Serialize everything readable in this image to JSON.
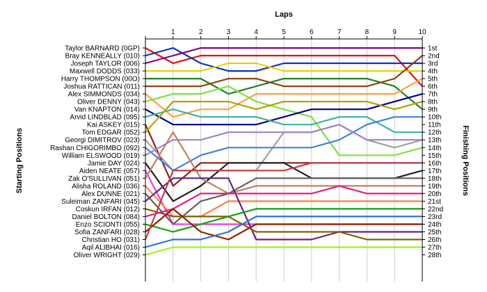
{
  "chart_data": {
    "type": "line",
    "title": "",
    "xlabel": "Laps",
    "ylabel_left": "Starting Positions",
    "ylabel_right": "Finishing Positions",
    "x": [
      0,
      1,
      2,
      3,
      4,
      5,
      6,
      7,
      8,
      9,
      10
    ],
    "x_tick_labels": [
      "",
      "1",
      "2",
      "3",
      "4",
      "5",
      "6",
      "7",
      "8",
      "9",
      "10"
    ],
    "y_range": [
      1,
      28
    ],
    "y_inverted": true,
    "grid": "vertical",
    "driver_labels": [
      "Taylor BARNARD (0GP)",
      "Bray KENNEALLY (010)",
      "Joseph TAYLOR (006)",
      "Maxwell DODDS (033)",
      "Harry THOMPSON (00O)",
      "Joshua RATTICAN (011)",
      "Alex SIMMONDS (034)",
      "Oliver DENNY (043)",
      "Van KNAPTON (014)",
      "Arvid LINDBLAD (095)",
      "Kai ASKEY (015)",
      "Tom EDGAR (052)",
      "Georgi DIMITROV (023)",
      "Rashan CHIGORIMBO (092)",
      "William ELSWOOD (019)",
      "Jamie DAY (024)",
      "Aiden NEATE (057)",
      "Zak O'SULLIVAN (051)",
      "Alisha ROLAND (036)",
      "Alex DUNNE (021)",
      "Suleiman ZANFARI (045)",
      "Coskun IRFAN (012)",
      "Daniel BOLTON (084)",
      "Enzo SCIONTI (055)",
      "Sofia ZANFARI (028)",
      "Christian HO (031)",
      "Aqil ALIBHAI (016)",
      "Oliver WRIGHT (029)"
    ],
    "finish_labels": [
      "1st",
      "2nd",
      "3rd",
      "4th",
      "5th",
      "6th",
      "7th",
      "8th",
      "9th",
      "10th",
      "11th",
      "12th",
      "13th",
      "14th",
      "15th",
      "16th",
      "17th",
      "18th",
      "19th",
      "20th",
      "21st",
      "22nd",
      "23rd",
      "24th",
      "25th",
      "26th",
      "27th",
      "28th"
    ],
    "series": [
      {
        "color": "#e01010",
        "values": [
          1,
          3,
          2,
          2,
          2,
          2,
          2,
          2,
          2,
          2,
          6
        ]
      },
      {
        "color": "#1030c0",
        "values": [
          2,
          1,
          3,
          4,
          4,
          3,
          3,
          3,
          3,
          3,
          3
        ]
      },
      {
        "color": "#800080",
        "values": [
          3,
          2,
          1,
          1,
          1,
          1,
          1,
          1,
          1,
          1,
          1
        ]
      },
      {
        "color": "#e8d000",
        "values": [
          4,
          4,
          4,
          3,
          3,
          4,
          4,
          4,
          4,
          4,
          4
        ]
      },
      {
        "color": "#208020",
        "values": [
          5,
          5,
          5,
          7,
          6,
          5,
          5,
          5,
          5,
          6,
          9
        ]
      },
      {
        "color": "#8b4513",
        "values": [
          6,
          6,
          6,
          5,
          5,
          6,
          6,
          6,
          6,
          5,
          2
        ]
      },
      {
        "color": "#ffa040",
        "values": [
          7,
          10,
          9,
          9,
          7,
          7,
          7,
          7,
          7,
          7,
          5
        ]
      },
      {
        "color": "#80e040",
        "values": [
          8,
          7,
          7,
          6,
          8,
          9,
          10,
          15,
          15,
          15,
          14
        ]
      },
      {
        "color": "#000080",
        "values": [
          9,
          11,
          11,
          11,
          11,
          10,
          9,
          9,
          9,
          8,
          7
        ]
      },
      {
        "color": "#40b0a0",
        "values": [
          10,
          9,
          10,
          10,
          10,
          11,
          11,
          10,
          10,
          12,
          12
        ]
      },
      {
        "color": "#8b2010",
        "values": [
          11,
          19,
          16,
          16,
          16,
          16,
          16,
          16,
          16,
          16,
          16
        ]
      },
      {
        "color": "#b8a000",
        "values": [
          12,
          8,
          8,
          8,
          9,
          8,
          8,
          8,
          8,
          9,
          8
        ]
      },
      {
        "color": "#a0a0a0",
        "values": [
          13,
          17,
          17,
          17,
          17,
          12,
          12,
          11,
          13,
          14,
          13
        ]
      },
      {
        "color": "#4080e0",
        "values": [
          14,
          17,
          15,
          14,
          14,
          14,
          14,
          13,
          11,
          10,
          10
        ]
      },
      {
        "color": "#a080d0",
        "values": [
          15,
          13,
          13,
          12,
          12,
          12,
          12,
          11,
          13,
          13,
          13
        ]
      },
      {
        "color": "#202020",
        "values": [
          16,
          21,
          19,
          16,
          16,
          16,
          18,
          18,
          18,
          18,
          17
        ]
      },
      {
        "color": "#e040e0",
        "values": [
          17,
          24,
          24,
          24,
          24,
          24,
          24,
          24,
          24,
          24,
          24
        ]
      },
      {
        "color": "#c08060",
        "values": [
          18,
          12,
          18,
          20,
          19,
          19,
          19,
          19,
          19,
          19,
          19
        ]
      },
      {
        "color": "#ff8040",
        "values": [
          19,
          23,
          23,
          21,
          21,
          21,
          21,
          21,
          21,
          21,
          21
        ]
      },
      {
        "color": "#606060",
        "values": [
          20,
          24,
          21,
          20,
          18,
          18,
          18,
          18,
          18,
          18,
          18
        ]
      },
      {
        "color": "#6a2080",
        "values": [
          21,
          18,
          18,
          18,
          26,
          26,
          26,
          25,
          25,
          25,
          25
        ]
      },
      {
        "color": "#806000",
        "values": [
          22,
          23,
          23,
          23,
          25,
          25,
          25,
          25,
          26,
          26,
          26
        ]
      },
      {
        "color": "#e02080",
        "values": [
          23,
          22,
          20,
          20,
          20,
          20,
          20,
          19,
          20,
          20,
          20
        ]
      },
      {
        "color": "#10a010",
        "values": [
          24,
          25,
          24,
          23,
          22,
          22,
          22,
          22,
          22,
          22,
          22
        ]
      },
      {
        "color": "#902000",
        "values": [
          25,
          22,
          25,
          26,
          24,
          24,
          24,
          24,
          24,
          24,
          24
        ]
      },
      {
        "color": "#c04040",
        "values": [
          26,
          17,
          17,
          17,
          17,
          17,
          16,
          16,
          16,
          16,
          16
        ]
      },
      {
        "color": "#3070d0",
        "values": [
          27,
          26,
          26,
          25,
          23,
          23,
          23,
          23,
          23,
          23,
          23
        ]
      },
      {
        "color": "#a0f020",
        "values": [
          28,
          27,
          27,
          27,
          27,
          27,
          27,
          27,
          27,
          27,
          27
        ]
      }
    ]
  }
}
